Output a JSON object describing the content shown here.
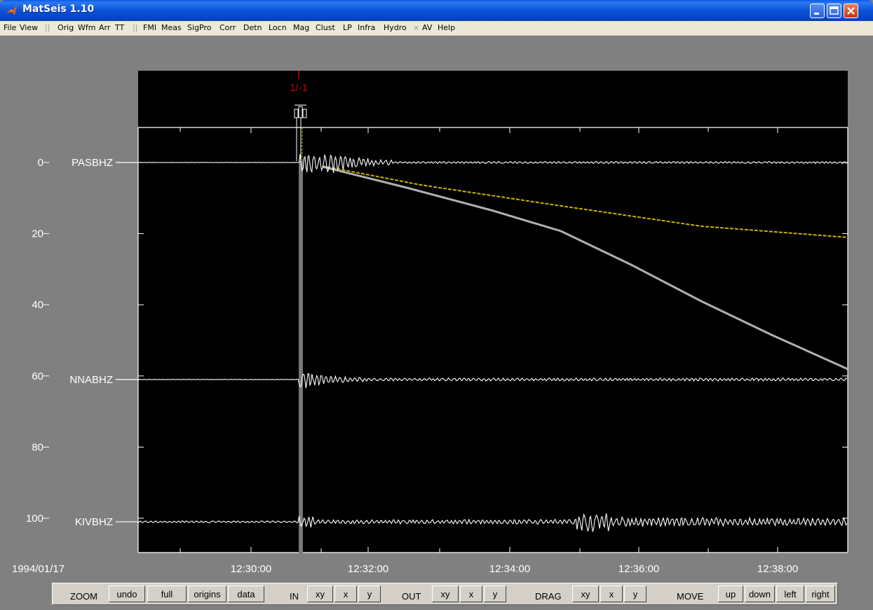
{
  "window": {
    "title": "MatSeis 1.10"
  },
  "menu": {
    "file": "File",
    "view": "View",
    "orig": "Orig",
    "wfm": "Wfm",
    "arr": "Arr",
    "tt": "TT",
    "fmi": "FMI",
    "meas": "Meas",
    "sigpro": "SigPro",
    "corr": "Corr",
    "detn": "Detn",
    "locn": "Locn",
    "mag": "Mag",
    "clust": "Clust",
    "lp": "LP",
    "infra": "Infra",
    "hydro": "Hydro",
    "av": "AV",
    "help": "Help"
  },
  "plot": {
    "origin_label": "1/-1",
    "date_label": "1994/01/17",
    "y_ticks": [
      0,
      20,
      40,
      60,
      80,
      100
    ],
    "x_ticks": [
      "12:30:00",
      "12:32:00",
      "12:34:00",
      "12:36:00",
      "12:38:00"
    ],
    "stations": [
      {
        "name": "PASBHZ",
        "offset": 0
      },
      {
        "name": "NNABHZ",
        "offset": 61
      },
      {
        "name": "KIVBHZ",
        "offset": 101
      }
    ],
    "colors": {
      "background": "#000000",
      "trace": "#ffffff",
      "origin": "#cc0000",
      "travel_time_yellow": "#c8b400",
      "travel_time_gray": "#b0b0b0"
    }
  },
  "toolbar": {
    "zoom_label": "ZOOM",
    "undo": "undo",
    "full": "full",
    "origins": "origins",
    "data": "data",
    "in_label": "IN",
    "in_xy": "xy",
    "in_x": "x",
    "in_y": "y",
    "out_label": "OUT",
    "out_xy": "xy",
    "out_x": "x",
    "out_y": "y",
    "drag_label": "DRAG",
    "drag_xy": "xy",
    "drag_x": "x",
    "drag_y": "y",
    "move_label": "MOVE",
    "up": "up",
    "down": "down",
    "left": "left",
    "right": "right"
  }
}
